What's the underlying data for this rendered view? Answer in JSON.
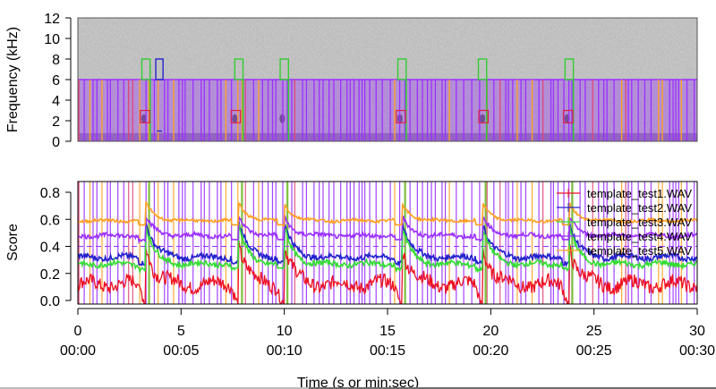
{
  "chart_data": [
    {
      "type": "heatmap",
      "name": "spectrogram",
      "title": "",
      "xlabel": "",
      "ylabel": "Frequency (kHz)",
      "xlim": [
        0,
        30
      ],
      "ylim": [
        0,
        12
      ],
      "yticks": [
        0,
        2,
        4,
        6,
        8,
        10,
        12
      ],
      "background_color": "#bdbdbd",
      "detection_boxes": {
        "purple_band": {
          "color": "#9b30ff",
          "ymin": 0,
          "ymax": 6
        },
        "green_tall": {
          "color": "#33cc33",
          "ymin": 6,
          "ymax": 8,
          "centers": [
            3.3,
            7.8,
            10.0,
            15.7,
            19.6,
            23.8
          ],
          "width": 0.4
        },
        "blue_tall": {
          "color": "#2222cc",
          "ymin": 6,
          "ymax": 8,
          "centers": [
            3.95
          ],
          "width": 0.35
        },
        "red_small": {
          "color": "#dd2244",
          "ymin": 1.8,
          "ymax": 3.0,
          "centers": [
            3.25,
            7.65,
            15.65,
            19.65,
            23.75
          ],
          "width": 0.45
        },
        "calls": [
          3.2,
          7.6,
          9.9,
          15.6,
          19.6,
          23.7
        ]
      }
    },
    {
      "type": "line",
      "name": "template-scores",
      "title": "",
      "xlabel": "Time (s or min:sec)",
      "ylabel": "Score",
      "xlim": [
        0,
        30
      ],
      "ylim": [
        0,
        0.85
      ],
      "yticks": [
        0.0,
        0.2,
        0.4,
        0.6,
        0.8
      ],
      "xticks": [
        0,
        5,
        10,
        15,
        20,
        25,
        30
      ],
      "xtick_labels_time": [
        "00:00",
        "00:05",
        "00:10",
        "00:15",
        "00:20",
        "00:25",
        "00:30"
      ],
      "threshold_line": {
        "y": 0.4,
        "color": "#9b30ff",
        "style": "dashed"
      },
      "peaks": [
        3.3,
        7.8,
        10.0,
        15.7,
        19.6,
        23.8
      ],
      "series": [
        {
          "name": "template_test1.WAV",
          "color": "#ee1122",
          "baseline": 0.12,
          "peak": 0.42,
          "noise": 0.05
        },
        {
          "name": "template_test2.WAV",
          "color": "#2222cc",
          "baseline": 0.32,
          "peak": 0.58,
          "noise": 0.02
        },
        {
          "name": "template_test3.WAV",
          "color": "#33dd33",
          "baseline": 0.27,
          "peak": 0.55,
          "noise": 0.02
        },
        {
          "name": "template_test4.WAV",
          "color": "#9b30ff",
          "baseline": 0.48,
          "peak": 0.62,
          "noise": 0.015
        },
        {
          "name": "template_test5.WAV",
          "color": "#ffa020",
          "baseline": 0.59,
          "peak": 0.72,
          "noise": 0.01
        }
      ],
      "legend": {
        "position": "top-right",
        "entries": [
          "template_test1.WAV",
          "template_test2.WAV",
          "template_test3.WAV",
          "template_test4.WAV",
          "template_test5.WAV"
        ]
      }
    }
  ],
  "labels": {
    "top_ylabel": "Frequency (kHz)",
    "bottom_ylabel": "Score",
    "xlabel": "Time (s or min:sec)"
  }
}
